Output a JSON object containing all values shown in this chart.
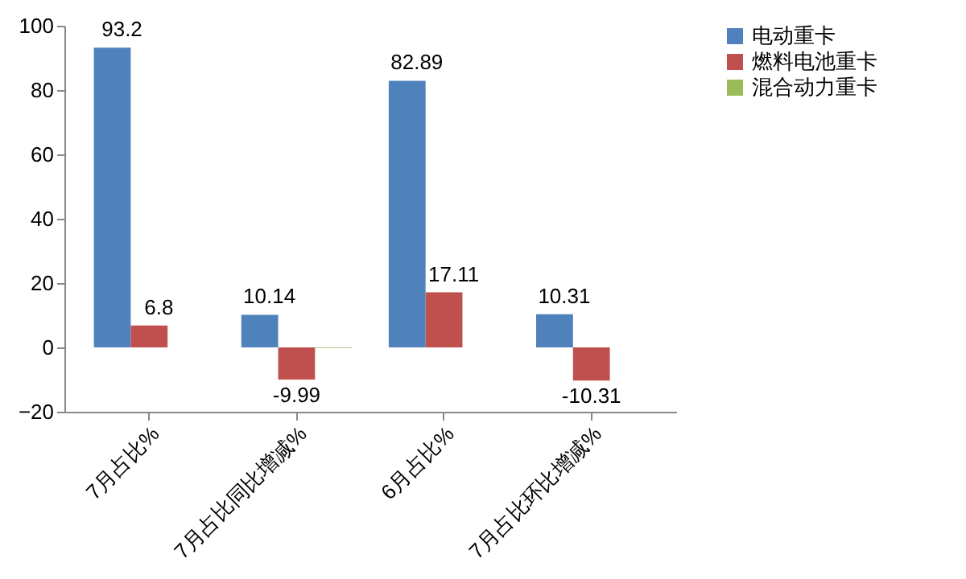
{
  "chart_data": {
    "type": "bar",
    "categories": [
      "7月占比%",
      "7月占比同比增减%",
      "6月占比%",
      "7月占比环比增减%"
    ],
    "series": [
      {
        "name": "电动重卡",
        "color": "#4f81bd",
        "values": [
          93.2,
          10.14,
          82.89,
          10.31
        ],
        "value_labels": [
          "93.2",
          "10.14",
          "82.89",
          "10.31"
        ]
      },
      {
        "name": "燃料电池重卡",
        "color": "#c0504d",
        "values": [
          6.8,
          -9.99,
          17.11,
          -10.31
        ],
        "value_labels": [
          "6.8",
          "-9.99",
          "17.11",
          "-10.31"
        ]
      },
      {
        "name": "混合动力重卡",
        "color": "#9bbb59",
        "values": [
          null,
          -0.2,
          null,
          null
        ],
        "value_labels": [
          null,
          null,
          null,
          null
        ]
      }
    ],
    "ylim": [
      -20,
      100
    ],
    "yticks": [
      -20,
      0,
      20,
      40,
      60,
      80,
      100
    ],
    "grid": false,
    "legend": "right"
  }
}
